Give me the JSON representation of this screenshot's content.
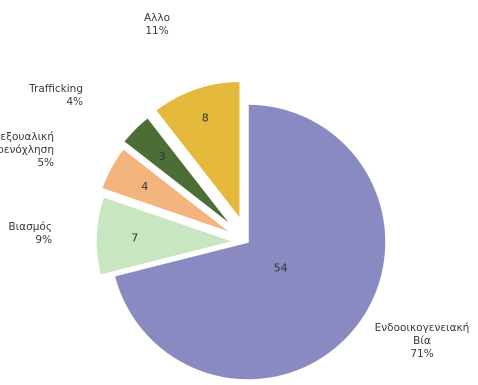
{
  "chart_data": {
    "type": "pie",
    "exploded": true,
    "slices": [
      {
        "category_lines": [
          "Ενδοοικογενειακή",
          "Βία"
        ],
        "value": "54",
        "percent": "71%",
        "color": "#8a8ac2"
      },
      {
        "category_lines": [
          "Βιασμός"
        ],
        "value": "7",
        "percent": "9%",
        "color": "#c8e6c0"
      },
      {
        "category_lines": [
          "Σεξουαλική",
          "Παρενόχληση"
        ],
        "value": "4",
        "percent": "5%",
        "color": "#f4b47e"
      },
      {
        "category_lines": [
          "Trafficking"
        ],
        "value": "3",
        "percent": "4%",
        "color": "#4c6e36"
      },
      {
        "category_lines": [
          "Αλλο"
        ],
        "value": "8",
        "percent": "11%",
        "color": "#e4b93c"
      }
    ]
  }
}
